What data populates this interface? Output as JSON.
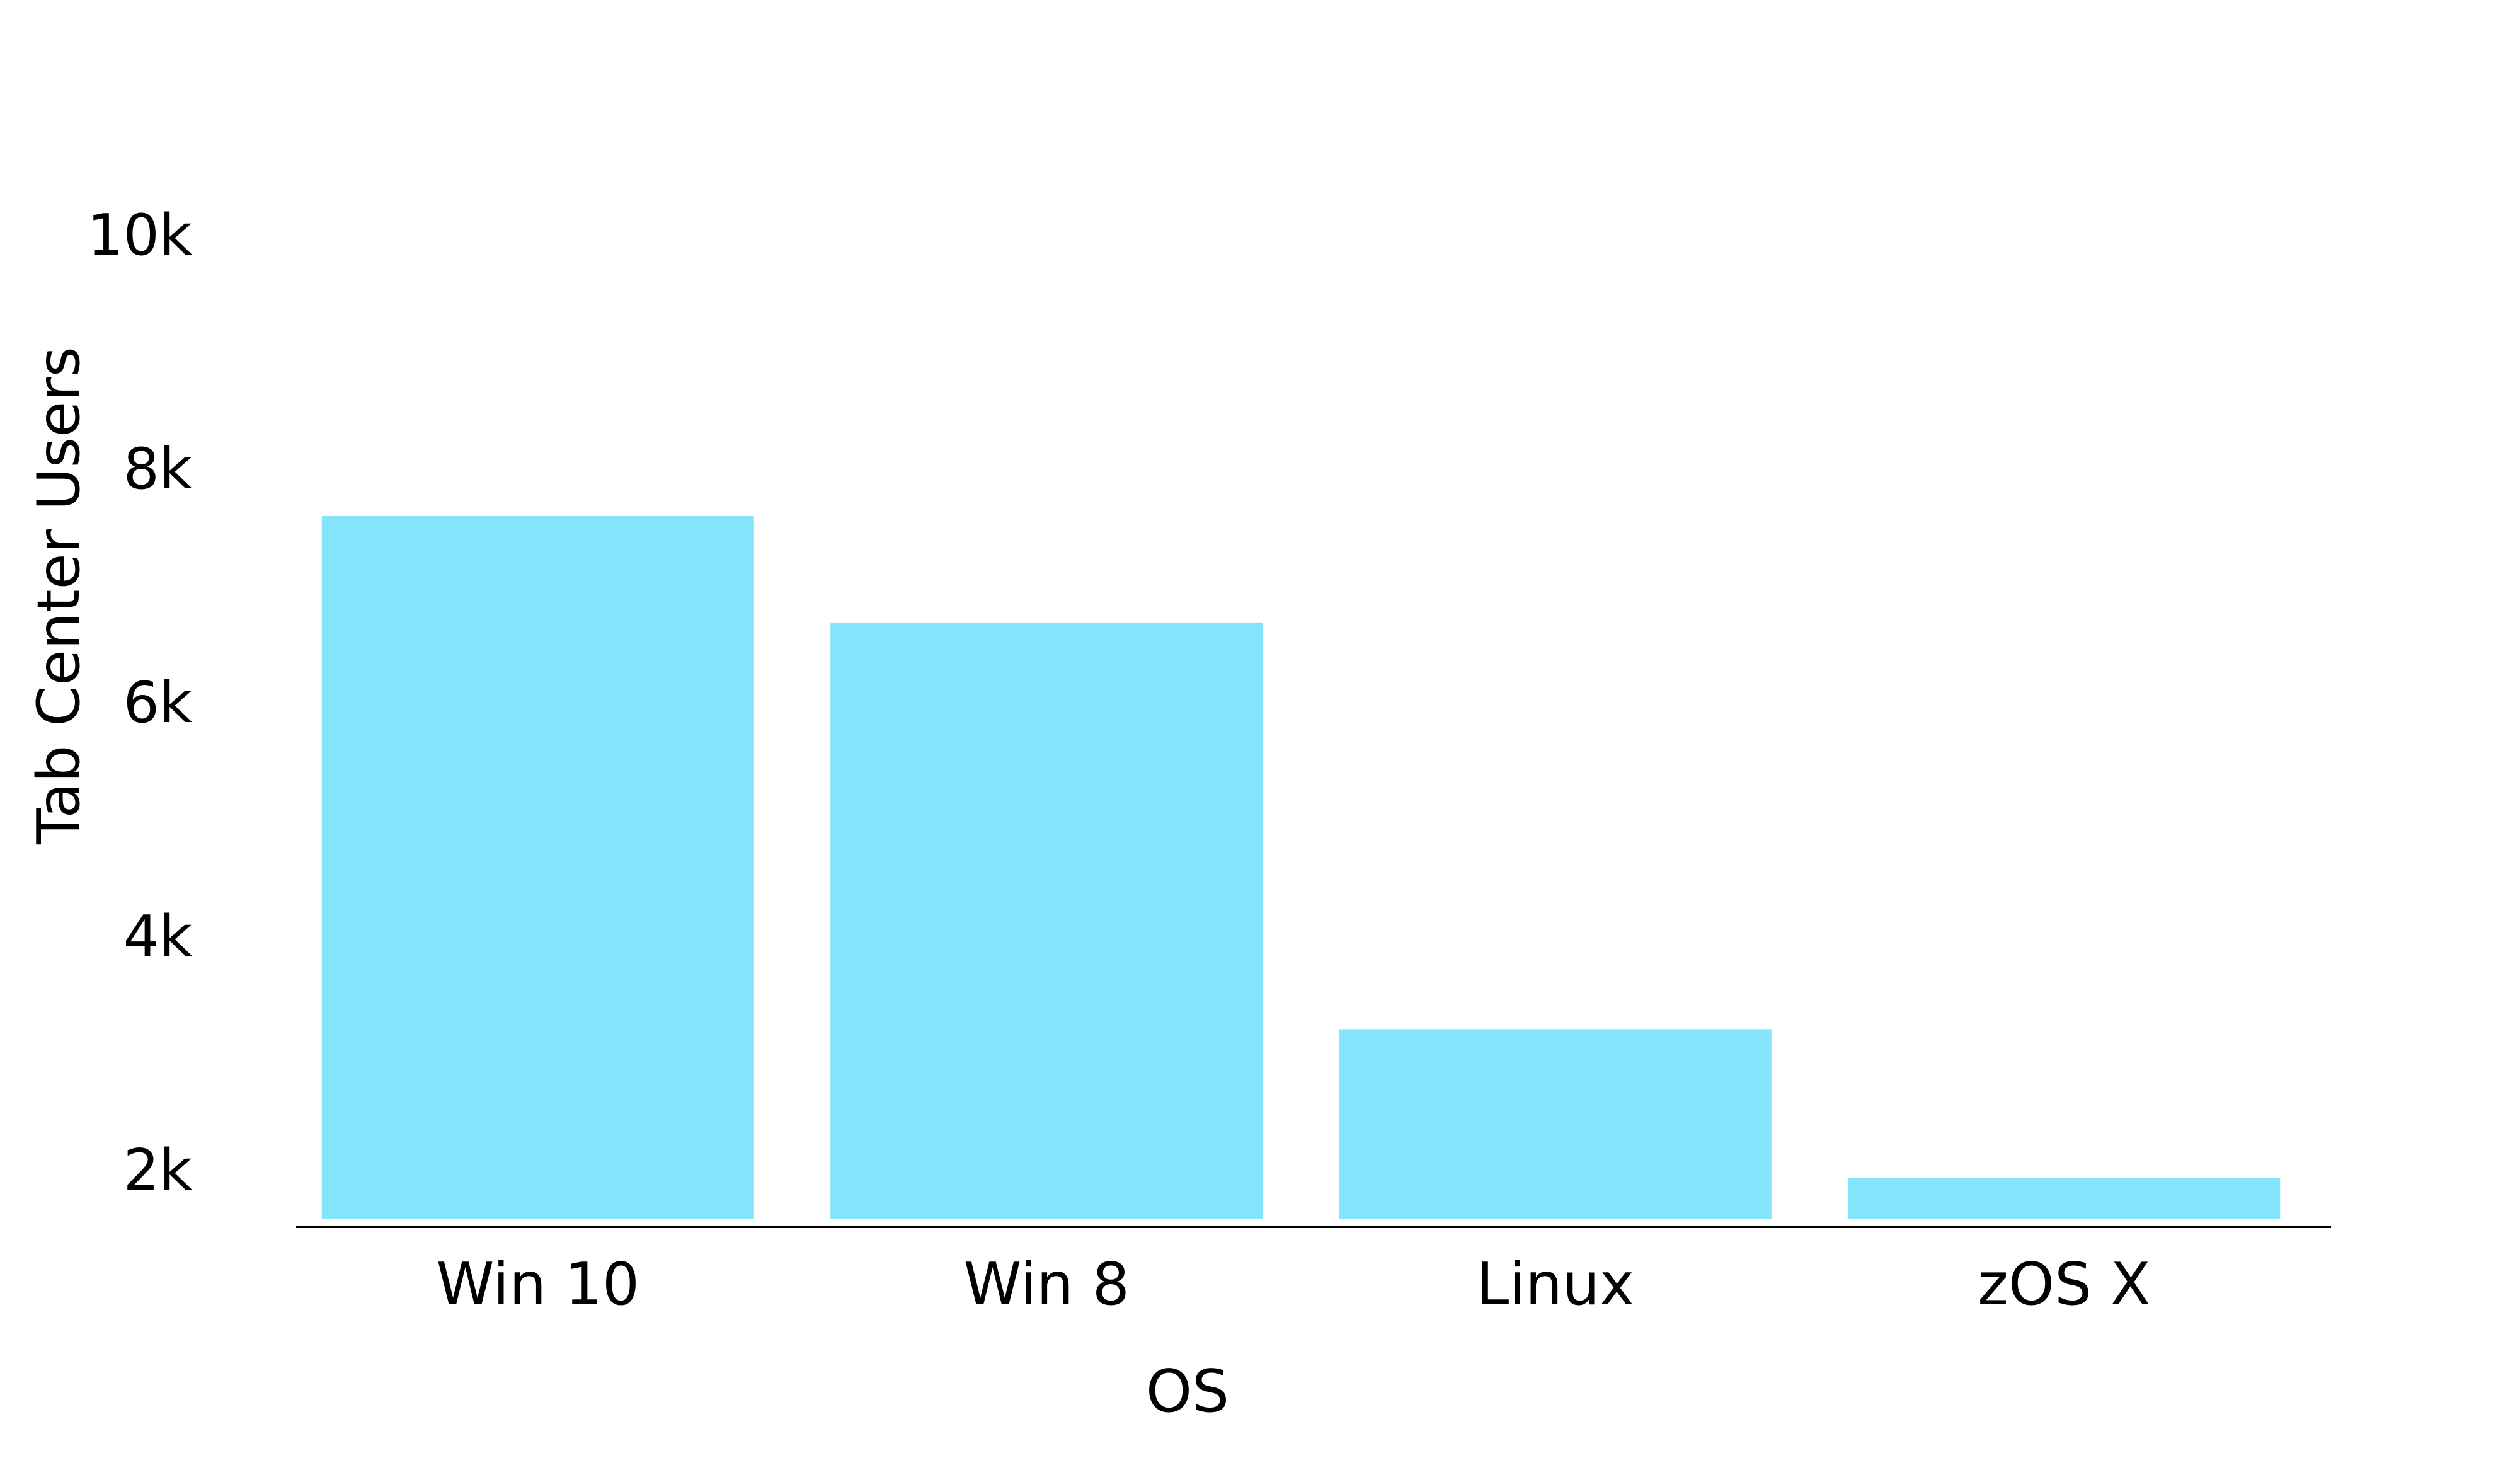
{
  "chart_data": {
    "type": "bar",
    "categories": [
      "Win 10",
      "Win 8",
      "Linux",
      "zOS X"
    ],
    "values": [
      7590,
      6680,
      3200,
      1930
    ],
    "xlabel": "OS",
    "ylabel": "Tab Center Users",
    "yticks": [
      2000,
      4000,
      6000,
      8000,
      10000
    ],
    "ytick_labels": [
      "2k",
      "4k",
      "6k",
      "8k",
      "10k"
    ],
    "ylim": [
      1560,
      10000
    ],
    "grid": false,
    "legend": "none",
    "bar_color": "#84e4fc",
    "axis_color": "#000000"
  }
}
